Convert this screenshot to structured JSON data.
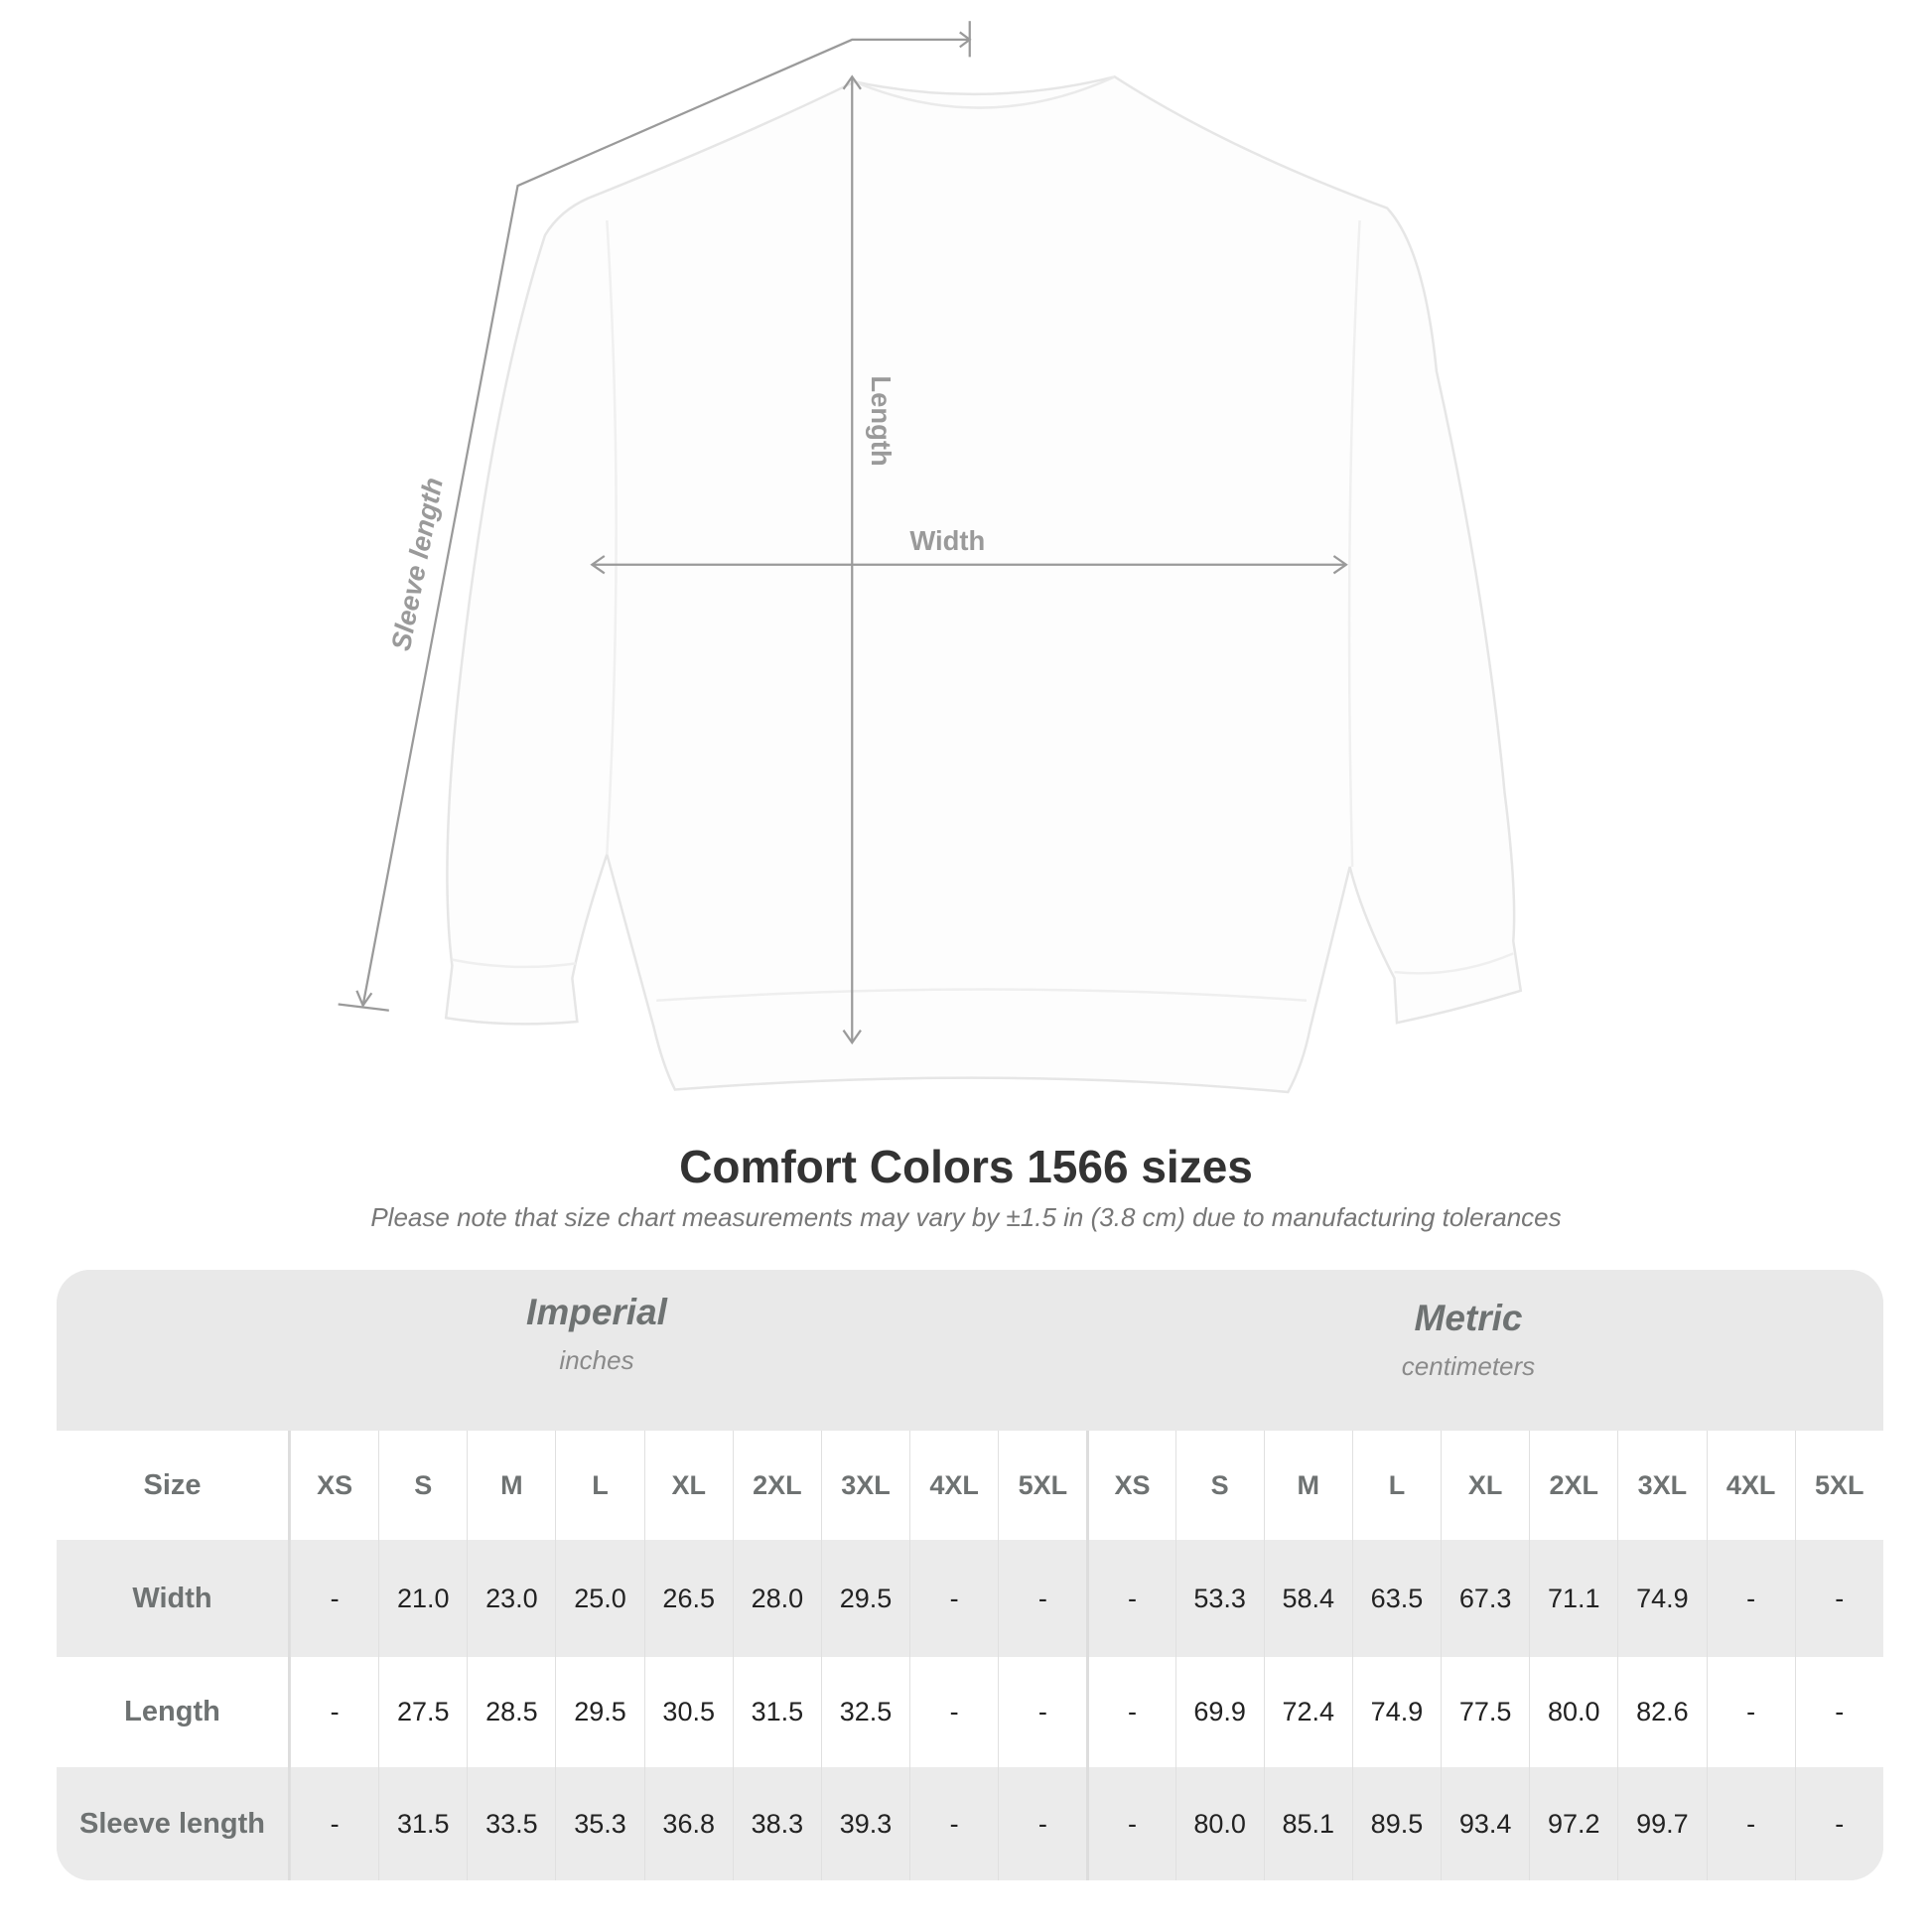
{
  "diagram": {
    "labels": {
      "length": "Length",
      "width": "Width",
      "sleeve": "Sleeve length"
    },
    "line_color": "#9a9a9a"
  },
  "title": "Comfort Colors 1566 sizes",
  "note": "Please note that size chart measurements may vary by ±1.5 in (3.8 cm) due to manufacturing tolerances",
  "table": {
    "imperial": {
      "name": "Imperial",
      "unit": "inches"
    },
    "metric": {
      "name": "Metric",
      "unit": "centimeters"
    },
    "size_label": "Size",
    "sizes": [
      "XS",
      "S",
      "M",
      "L",
      "XL",
      "2XL",
      "3XL",
      "4XL",
      "5XL"
    ],
    "rows": [
      {
        "label": "Width",
        "imperial": [
          "-",
          "21.0",
          "23.0",
          "25.0",
          "26.5",
          "28.0",
          "29.5",
          "-",
          "-"
        ],
        "metric": [
          "-",
          "53.3",
          "58.4",
          "63.5",
          "67.3",
          "71.1",
          "74.9",
          "-",
          "-"
        ]
      },
      {
        "label": "Length",
        "imperial": [
          "-",
          "27.5",
          "28.5",
          "29.5",
          "30.5",
          "31.5",
          "32.5",
          "-",
          "-"
        ],
        "metric": [
          "-",
          "69.9",
          "72.4",
          "74.9",
          "77.5",
          "80.0",
          "82.6",
          "-",
          "-"
        ]
      },
      {
        "label": "Sleeve length",
        "imperial": [
          "-",
          "31.5",
          "33.5",
          "35.3",
          "36.8",
          "38.3",
          "39.3",
          "-",
          "-"
        ],
        "metric": [
          "-",
          "80.0",
          "85.1",
          "89.5",
          "93.4",
          "97.2",
          "99.7",
          "-",
          "-"
        ]
      }
    ]
  }
}
